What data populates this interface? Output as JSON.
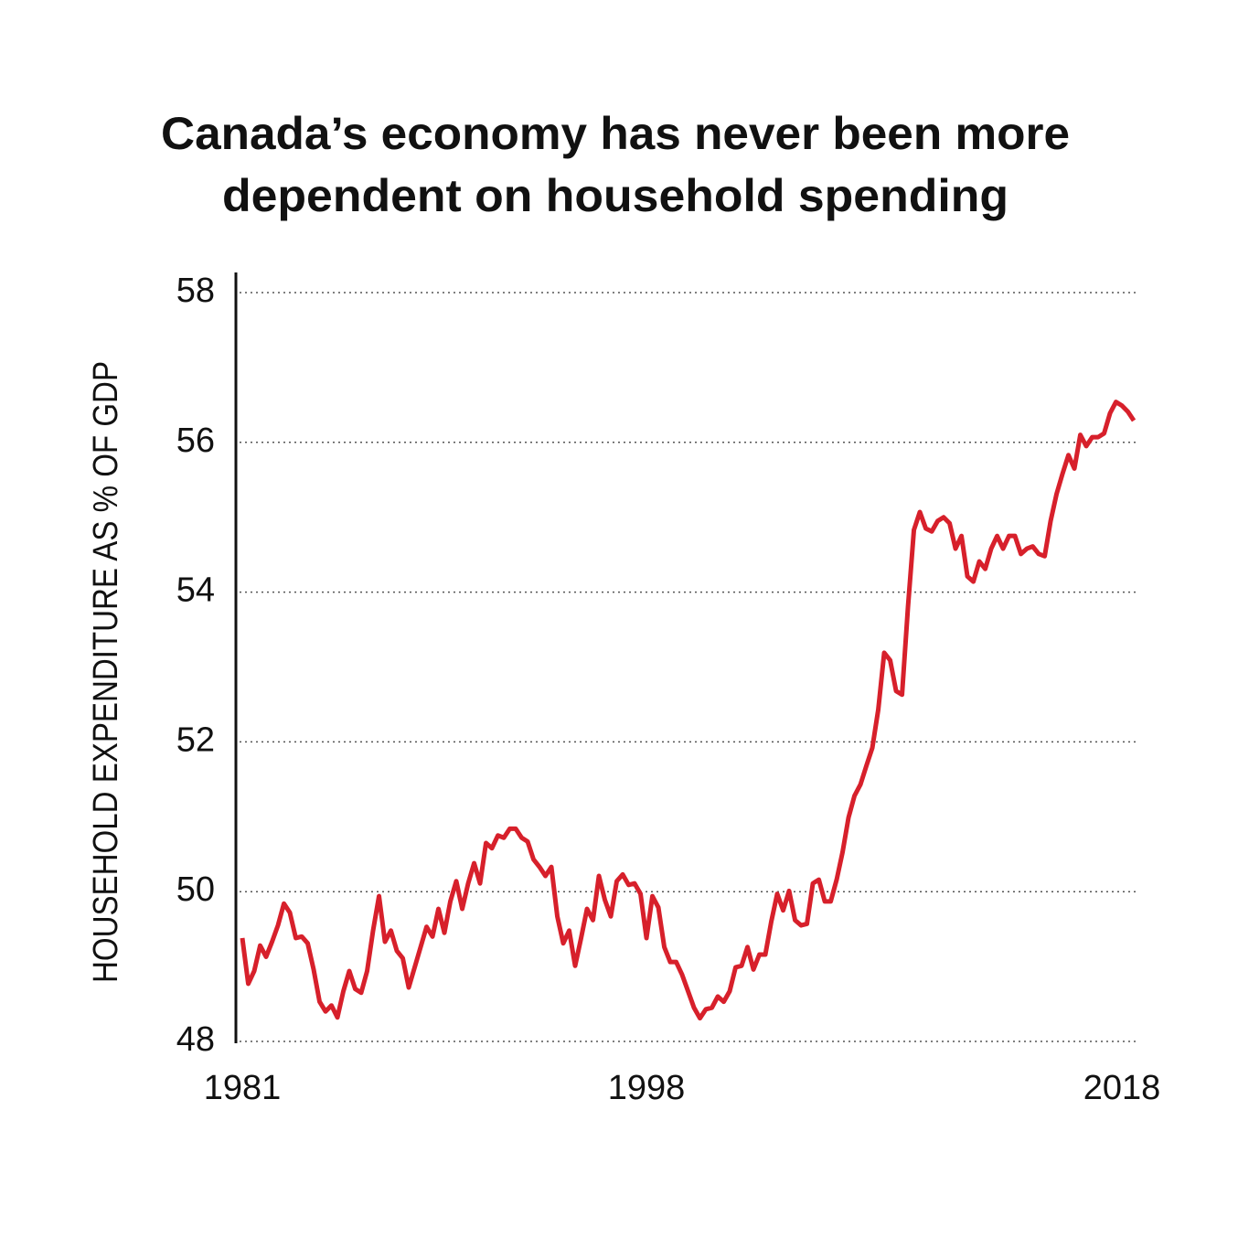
{
  "chart_data": {
    "type": "line",
    "title": [
      "Canada’s economy has never been more",
      "dependent on household spending"
    ],
    "y_label": "HOUSEHOLD EXPENDITURE AS % OF GDP",
    "x": [
      1981,
      1981.25,
      1981.5,
      1981.75,
      1982,
      1982.25,
      1982.5,
      1982.75,
      1983,
      1983.25,
      1983.5,
      1983.75,
      1984,
      1984.25,
      1984.5,
      1984.75,
      1985,
      1985.25,
      1985.5,
      1985.75,
      1986,
      1986.25,
      1986.5,
      1986.75,
      1987,
      1987.25,
      1987.5,
      1987.75,
      1988,
      1988.25,
      1988.5,
      1988.75,
      1989,
      1989.25,
      1989.5,
      1989.75,
      1990,
      1990.25,
      1990.5,
      1990.75,
      1991,
      1991.25,
      1991.5,
      1991.75,
      1992,
      1992.25,
      1992.5,
      1992.75,
      1993,
      1993.25,
      1993.5,
      1993.75,
      1994,
      1994.25,
      1994.5,
      1994.75,
      1995,
      1995.25,
      1995.5,
      1995.75,
      1996,
      1996.25,
      1996.5,
      1996.75,
      1997,
      1997.25,
      1997.5,
      1997.75,
      1998,
      1998.25,
      1998.5,
      1998.75,
      1999,
      1999.25,
      1999.5,
      1999.75,
      2000,
      2000.25,
      2000.5,
      2000.75,
      2001,
      2001.25,
      2001.5,
      2001.75,
      2002,
      2002.25,
      2002.5,
      2002.75,
      2003,
      2003.25,
      2003.5,
      2003.75,
      2004,
      2004.25,
      2004.5,
      2004.75,
      2005,
      2005.25,
      2005.5,
      2005.75,
      2006,
      2006.25,
      2006.5,
      2006.75,
      2007,
      2007.25,
      2007.5,
      2007.75,
      2008,
      2008.25,
      2008.5,
      2008.75,
      2009,
      2009.25,
      2009.5,
      2009.75,
      2010,
      2010.25,
      2010.5,
      2010.75,
      2011,
      2011.25,
      2011.5,
      2011.75,
      2012,
      2012.25,
      2012.5,
      2012.75,
      2013,
      2013.25,
      2013.5,
      2013.75,
      2014,
      2014.25,
      2014.5,
      2014.75,
      2015,
      2015.25,
      2015.5,
      2015.75,
      2016,
      2016.25,
      2016.5,
      2016.75,
      2017,
      2017.25,
      2017.5,
      2017.75,
      2018,
      2018.25,
      2018.5
    ],
    "series": [
      {
        "color": "#d7202b",
        "values": [
          49.38,
          48.77,
          48.94,
          49.28,
          49.13,
          49.33,
          49.55,
          49.84,
          49.72,
          49.38,
          49.4,
          49.31,
          48.96,
          48.53,
          48.4,
          48.48,
          48.32,
          48.67,
          48.94,
          48.7,
          48.65,
          48.94,
          49.48,
          49.94,
          49.33,
          49.48,
          49.21,
          49.11,
          48.72,
          48.99,
          49.26,
          49.53,
          49.4,
          49.77,
          49.45,
          49.87,
          50.14,
          49.77,
          50.11,
          50.38,
          50.11,
          50.65,
          50.58,
          50.75,
          50.72,
          50.84,
          50.84,
          50.72,
          50.67,
          50.43,
          50.33,
          50.21,
          50.33,
          49.67,
          49.31,
          49.48,
          49.01,
          49.38,
          49.77,
          49.62,
          50.21,
          49.89,
          49.67,
          50.14,
          50.23,
          50.09,
          50.11,
          49.97,
          49.38,
          49.94,
          49.79,
          49.26,
          49.06,
          49.06,
          48.89,
          48.67,
          48.45,
          48.31,
          48.43,
          48.45,
          48.6,
          48.53,
          48.67,
          48.99,
          49.01,
          49.26,
          48.96,
          49.16,
          49.16,
          49.6,
          49.97,
          49.75,
          50.01,
          49.62,
          49.55,
          49.57,
          50.11,
          50.16,
          49.87,
          49.87,
          50.16,
          50.53,
          50.99,
          51.28,
          51.43,
          51.68,
          51.92,
          52.43,
          53.19,
          53.09,
          52.68,
          52.63,
          53.8,
          54.83,
          55.07,
          54.85,
          54.81,
          54.95,
          55.0,
          54.92,
          54.58,
          54.75,
          54.21,
          54.14,
          54.41,
          54.31,
          54.58,
          54.75,
          54.58,
          54.75,
          54.75,
          54.51,
          54.58,
          54.61,
          54.51,
          54.48,
          54.95,
          55.31,
          55.58,
          55.83,
          55.65,
          56.1,
          55.95,
          56.07,
          56.07,
          56.12,
          56.39,
          56.54,
          56.49,
          56.41,
          56.29
        ]
      }
    ],
    "xlim": [
      1980.73,
      2018.69
    ],
    "xticks": [
      1981,
      1998,
      2018
    ],
    "ylim": [
      48,
      58
    ],
    "yticks": [
      48,
      50,
      52,
      54,
      56,
      58
    ],
    "grid": true
  }
}
